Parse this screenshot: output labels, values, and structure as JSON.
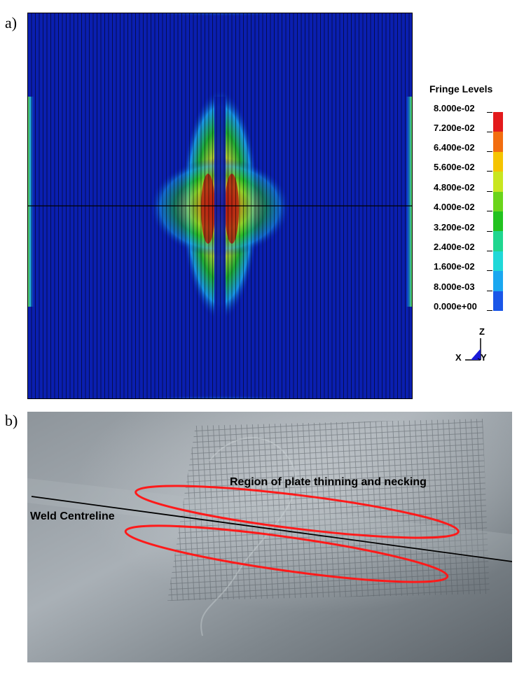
{
  "panels": {
    "a_label": "a)",
    "b_label": "b)"
  },
  "legend": {
    "title": "Fringe Levels",
    "levels": [
      "8.000e-02",
      "7.200e-02",
      "6.400e-02",
      "5.600e-02",
      "4.800e-02",
      "4.000e-02",
      "3.200e-02",
      "2.400e-02",
      "1.600e-02",
      "8.000e-03",
      "0.000e+00"
    ],
    "colors": [
      "#e31a1c",
      "#f26d0f",
      "#f5c400",
      "#c8e620",
      "#6ad41a",
      "#22c21f",
      "#1fd68f",
      "#20d8d8",
      "#1aa7f0",
      "#1a56e8"
    ]
  },
  "triad": {
    "z": "Z",
    "x": "X",
    "y": "Y"
  },
  "photo": {
    "annotation_necking": "Region of plate thinning and necking",
    "annotation_weld": "Weld Centreline",
    "ellipse_color": "#ff1a1a",
    "line_color": "#000000"
  }
}
